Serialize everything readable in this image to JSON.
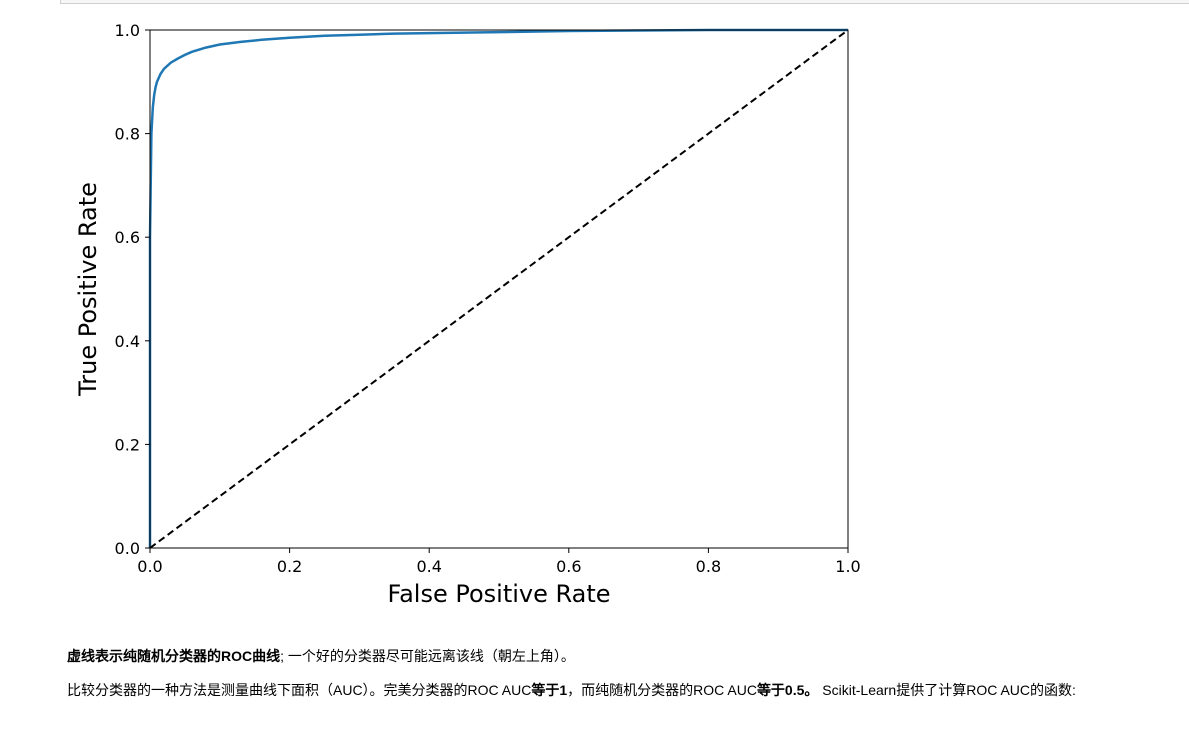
{
  "chart_data": {
    "type": "line",
    "xlabel": "False Positive Rate",
    "ylabel": "True Positive Rate",
    "xlim": [
      0.0,
      1.0
    ],
    "ylim": [
      0.0,
      1.0
    ],
    "xticks": [
      "0.0",
      "0.2",
      "0.4",
      "0.6",
      "0.8",
      "1.0"
    ],
    "yticks": [
      "0.0",
      "0.2",
      "0.4",
      "0.6",
      "0.8",
      "1.0"
    ],
    "grid": false,
    "colors": {
      "roc": "#1f77b4",
      "baseline": "#000000"
    },
    "series": [
      {
        "style": "solid",
        "x": [
          0.0,
          0.0,
          0.002,
          0.004,
          0.006,
          0.008,
          0.01,
          0.015,
          0.02,
          0.03,
          0.04,
          0.05,
          0.06,
          0.08,
          0.1,
          0.13,
          0.16,
          0.2,
          0.25,
          0.3,
          0.35,
          0.4,
          0.5,
          0.6,
          0.7,
          0.8,
          0.9,
          1.0
        ],
        "y": [
          0.0,
          0.6,
          0.8,
          0.85,
          0.875,
          0.89,
          0.9,
          0.915,
          0.925,
          0.937,
          0.945,
          0.952,
          0.958,
          0.966,
          0.972,
          0.977,
          0.981,
          0.985,
          0.989,
          0.991,
          0.993,
          0.994,
          0.996,
          0.998,
          0.999,
          1.0,
          1.0,
          1.0
        ]
      },
      {
        "style": "dashed",
        "x": [
          0.0,
          1.0
        ],
        "y": [
          0.0,
          1.0
        ]
      }
    ]
  },
  "markdown": {
    "p1_bold": "虚线表示纯随机分类器的ROC曲线",
    "p1_rest": "; 一个好的分类器尽可能远离该线（朝左上角）。",
    "p2_a": "比较分类器的一种方法是测量曲线下面积（AUC）。完美分类器的ROC AUC",
    "p2_b_bold": "等于1",
    "p2_c": "，而纯随机分类器的ROC AUC",
    "p2_d_bold": "等于0.5。",
    "p2_e": " Scikit-Learn提供了计算ROC AUC的函数:"
  }
}
